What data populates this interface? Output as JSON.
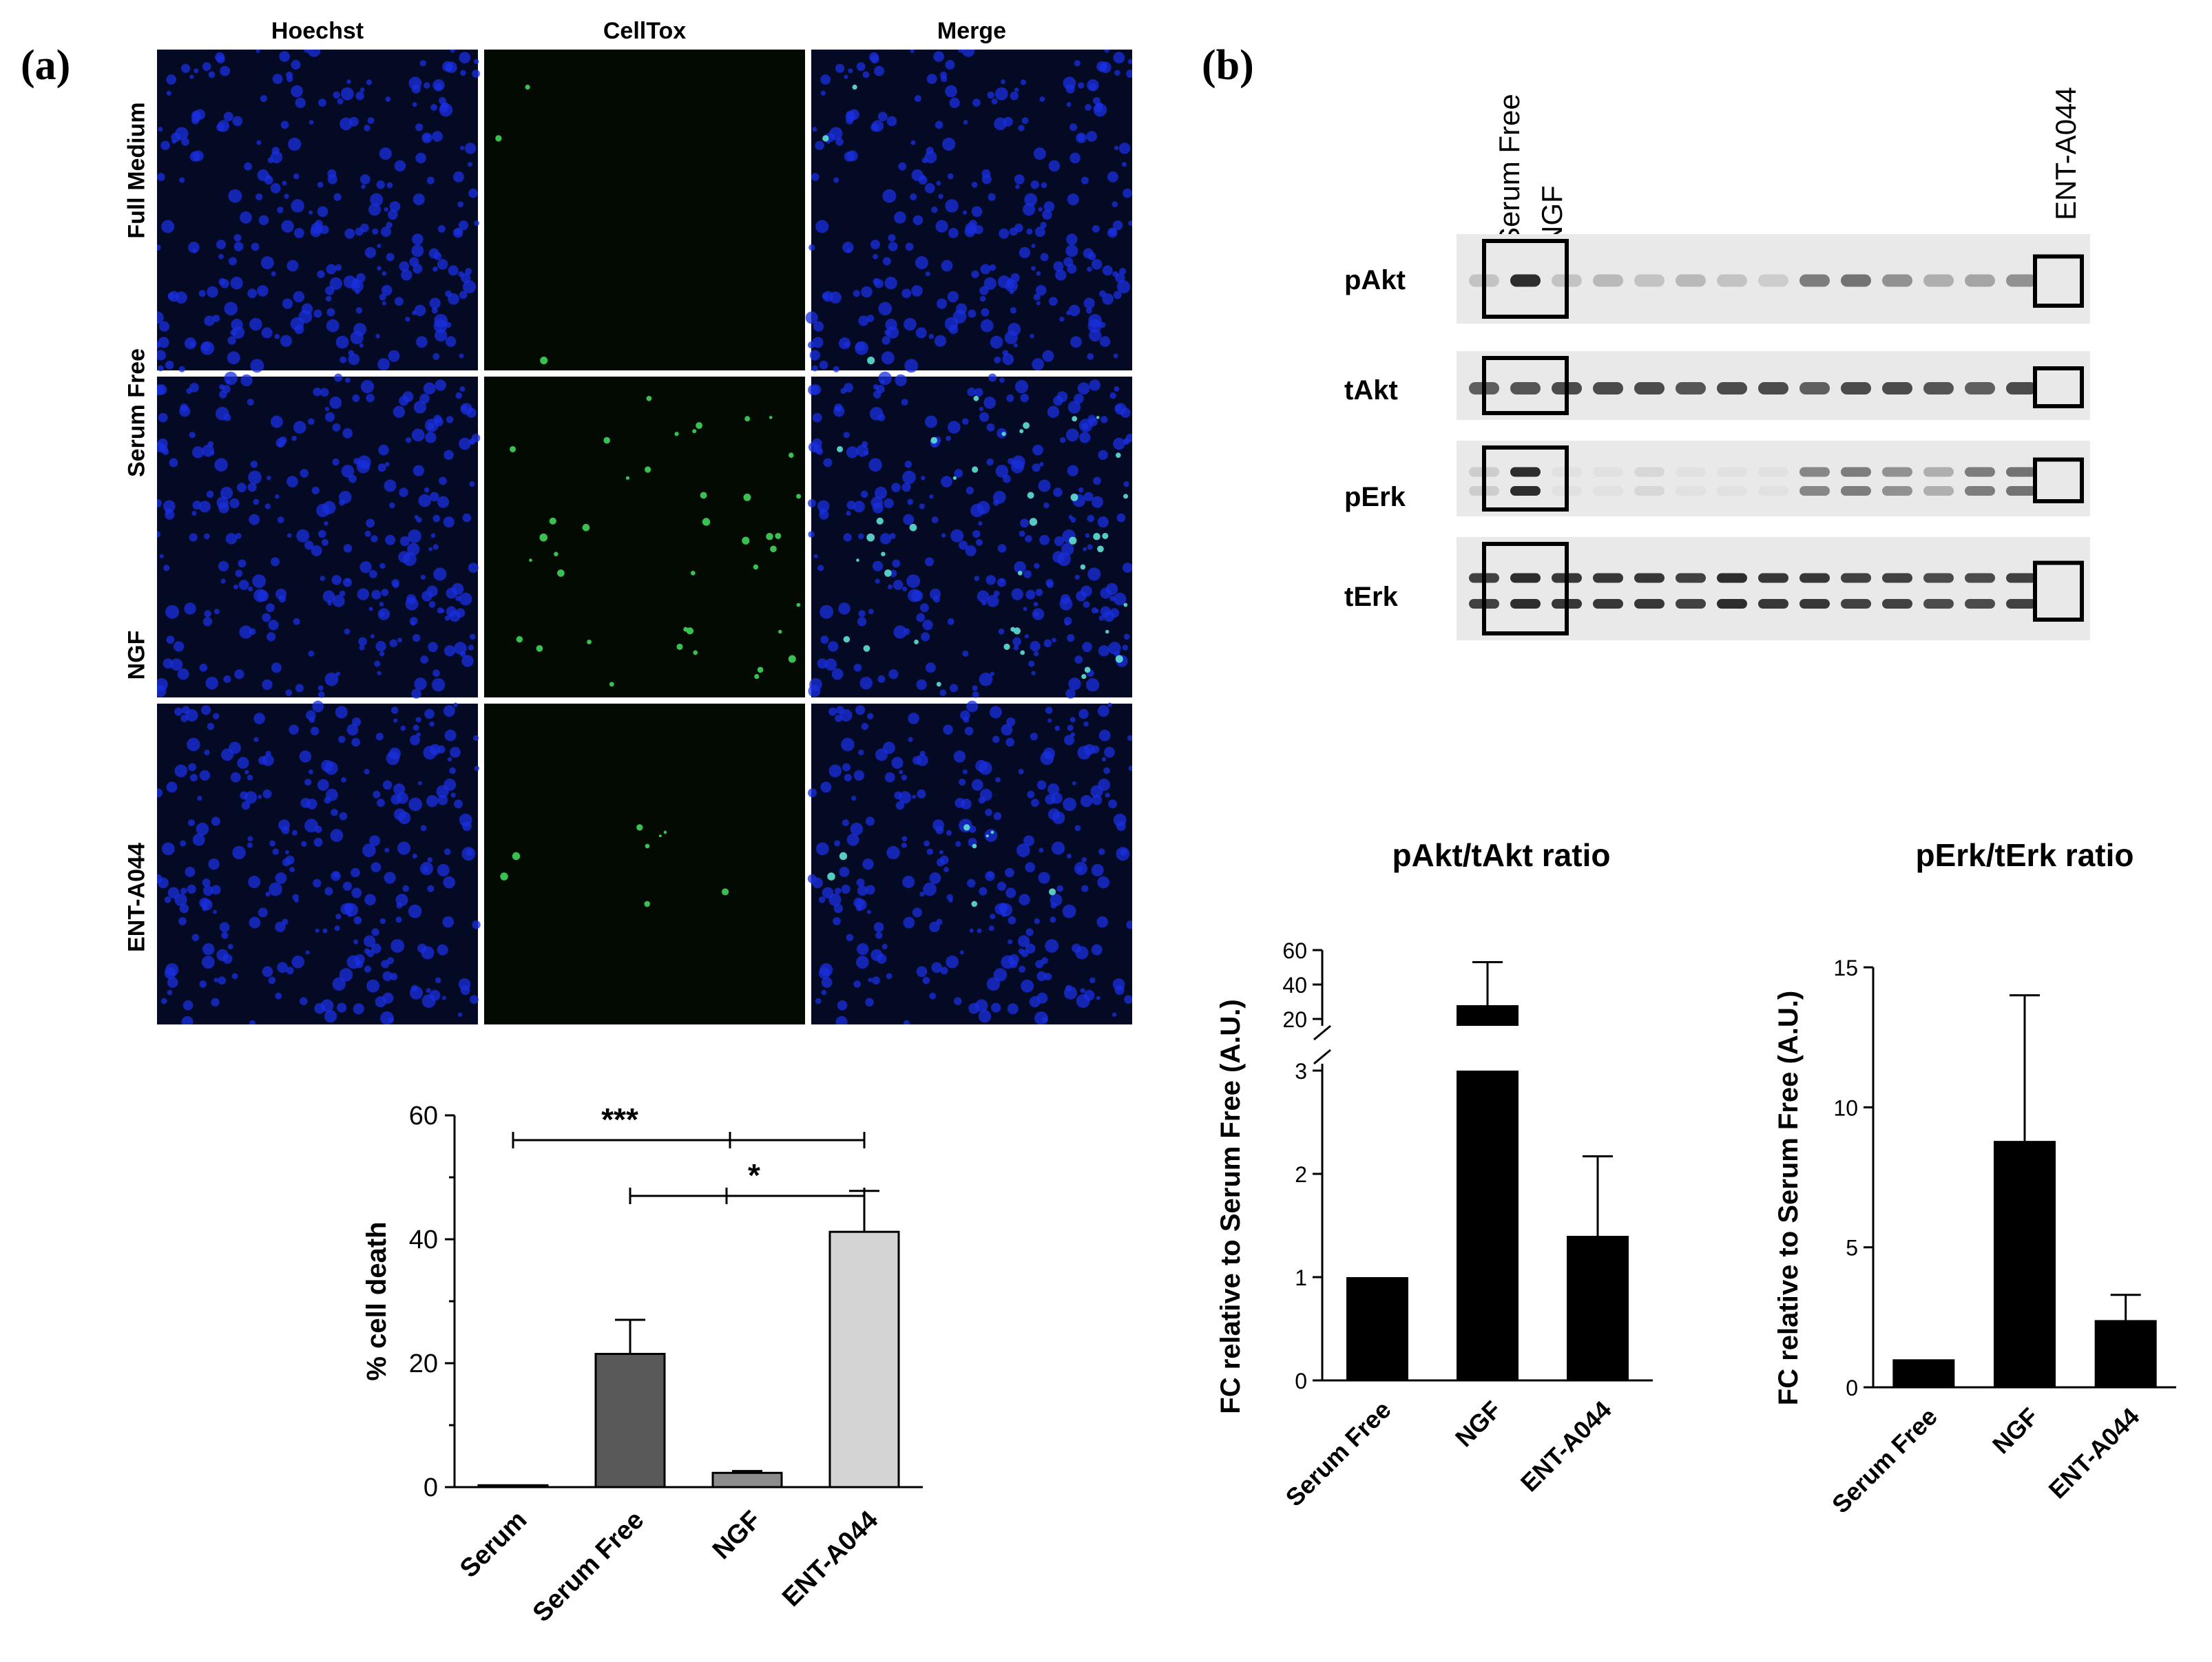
{
  "panel_a": {
    "label": "(a)",
    "columns": [
      "Hoechst",
      "CellTox",
      "Merge"
    ],
    "rows": [
      "Full Medium",
      "Serum Free",
      "NGF",
      "ENT-A044"
    ],
    "colors": {
      "hoechst": "#1a2fe0",
      "celltox": "#3fd45a",
      "merge_bg": "#040a24"
    }
  },
  "panel_b": {
    "label": "(b)",
    "lane_labels": [
      "Serum Free",
      "NGF",
      "ENT-A044"
    ],
    "blot_labels": [
      "pAkt",
      "tAkt",
      "pErk",
      "tErk"
    ]
  },
  "chart_data": [
    {
      "type": "bar",
      "title": "",
      "xlabel": "",
      "ylabel": "% cell death",
      "categories": [
        "Serum",
        "Serum Free",
        "NGF",
        "ENT-A044"
      ],
      "values": [
        0.3,
        21.5,
        2.3,
        41.2
      ],
      "errors": [
        0,
        5.5,
        0.3,
        6.6
      ],
      "bar_colors": [
        "#1a1a1a",
        "#595959",
        "#8c8c8c",
        "#d4d4d4"
      ],
      "ylim": [
        0,
        60
      ],
      "yticks": [
        "0",
        "20",
        "40",
        "60"
      ],
      "significance": [
        {
          "from": "Serum",
          "to": "ENT-A044",
          "label": "***"
        },
        {
          "from": "Serum Free",
          "to": "ENT-A044",
          "label": "*"
        }
      ]
    },
    {
      "type": "bar",
      "title": "pAkt/tAkt ratio",
      "xlabel": "",
      "ylabel": "FC relative to Serum Free (A.U.)",
      "categories": [
        "Serum Free",
        "NGF",
        "ENT-A044"
      ],
      "values": [
        1,
        28,
        1.4
      ],
      "errors": [
        0,
        25,
        0.77
      ],
      "axis_break": {
        "lower": [
          0,
          3
        ],
        "upper": [
          20,
          60
        ]
      },
      "yticks_lower": [
        "0",
        "1",
        "2",
        "3"
      ],
      "yticks_upper": [
        "20",
        "40",
        "60"
      ]
    },
    {
      "type": "bar",
      "title": "pErk/tErk ratio",
      "xlabel": "",
      "ylabel": "FC relative to Serum Free (A.U.)",
      "categories": [
        "Serum Free",
        "NGF",
        "ENT-A044"
      ],
      "values": [
        1,
        8.8,
        2.4
      ],
      "errors": [
        0,
        5.2,
        0.9
      ],
      "ylim": [
        0,
        15
      ],
      "yticks": [
        "0",
        "5",
        "10",
        "15"
      ]
    }
  ]
}
